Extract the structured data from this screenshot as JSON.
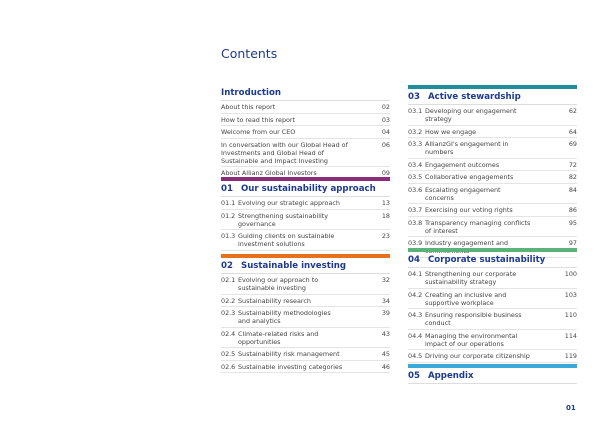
{
  "title": "Contents",
  "page_number": "01",
  "sections": [
    {
      "title": "Introduction",
      "items": [
        {
          "title": "About this report",
          "page": "02"
        },
        {
          "title": "How to read this report",
          "page": "03"
        },
        {
          "title": "Welcome from our CEO",
          "page": "04"
        },
        {
          "title": "In conversation with our Global Head of Investments and Global Head of Sustainable and Impact Investing",
          "page": "06"
        },
        {
          "title": "About Allianz Global Investors",
          "page": "09"
        }
      ]
    },
    {
      "number": "01",
      "title": "Our sustainability approach",
      "items": [
        {
          "number": "01.1",
          "title": "Evolving our strategic approach",
          "page": "13"
        },
        {
          "number": "01.2",
          "title": "Strengthening sustainability governance",
          "page": "18"
        },
        {
          "number": "01.3",
          "title": "Guiding clients on sustainable investment solutions",
          "page": "23"
        }
      ]
    },
    {
      "number": "02",
      "title": "Sustainable investing",
      "items": [
        {
          "number": "02.1",
          "title": "Evolving our approach to sustainable investing",
          "page": "32"
        },
        {
          "number": "02.2",
          "title": "Sustainability research",
          "page": "34"
        },
        {
          "number": "02.3",
          "title": "Sustainability methodologies and analytics",
          "page": "39"
        },
        {
          "number": "02.4",
          "title": "Climate-related risks and opportunities",
          "page": "43"
        },
        {
          "number": "02.5",
          "title": "Sustainability risk management",
          "page": "45"
        },
        {
          "number": "02.6",
          "title": "Sustainable investing categories",
          "page": "46"
        }
      ]
    },
    {
      "number": "03",
      "title": "Active stewardship",
      "items": [
        {
          "number": "03.1",
          "title": "Developing our engagement strategy",
          "page": "62"
        },
        {
          "number": "03.2",
          "title": "How we engage",
          "page": "64"
        },
        {
          "number": "03.3",
          "title": "AllianzGI's engagement in numbers",
          "page": "69"
        },
        {
          "number": "03.4",
          "title": "Engagement outcomes",
          "page": "72"
        },
        {
          "number": "03.5",
          "title": "Collaborative engagements",
          "page": "82"
        },
        {
          "number": "03.6",
          "title": "Escalating engagement concerns",
          "page": "84"
        },
        {
          "number": "03.7",
          "title": "Exercising our voting rights",
          "page": "86"
        },
        {
          "number": "03.8",
          "title": "Transparency managing conflicts of interest",
          "page": "95"
        },
        {
          "number": "03.9",
          "title": "Industry engagement and commitments",
          "page": "97"
        }
      ]
    },
    {
      "number": "04",
      "title": "Corporate sustainability",
      "items": [
        {
          "number": "04.1",
          "title": "Strengthening our corporate sustainability strategy",
          "page": "100"
        },
        {
          "number": "04.2",
          "title": "Creating an inclusive and supportive workplace",
          "page": "103"
        },
        {
          "number": "04.3",
          "title": "Ensuring responsible business conduct",
          "page": "110"
        },
        {
          "number": "04.4",
          "title": "Managing the environmental impact of our operations",
          "page": "114"
        },
        {
          "number": "04.5",
          "title": "Driving our corporate citizenship",
          "page": "119"
        }
      ]
    },
    {
      "number": "05",
      "title": "Appendix",
      "items": []
    }
  ]
}
